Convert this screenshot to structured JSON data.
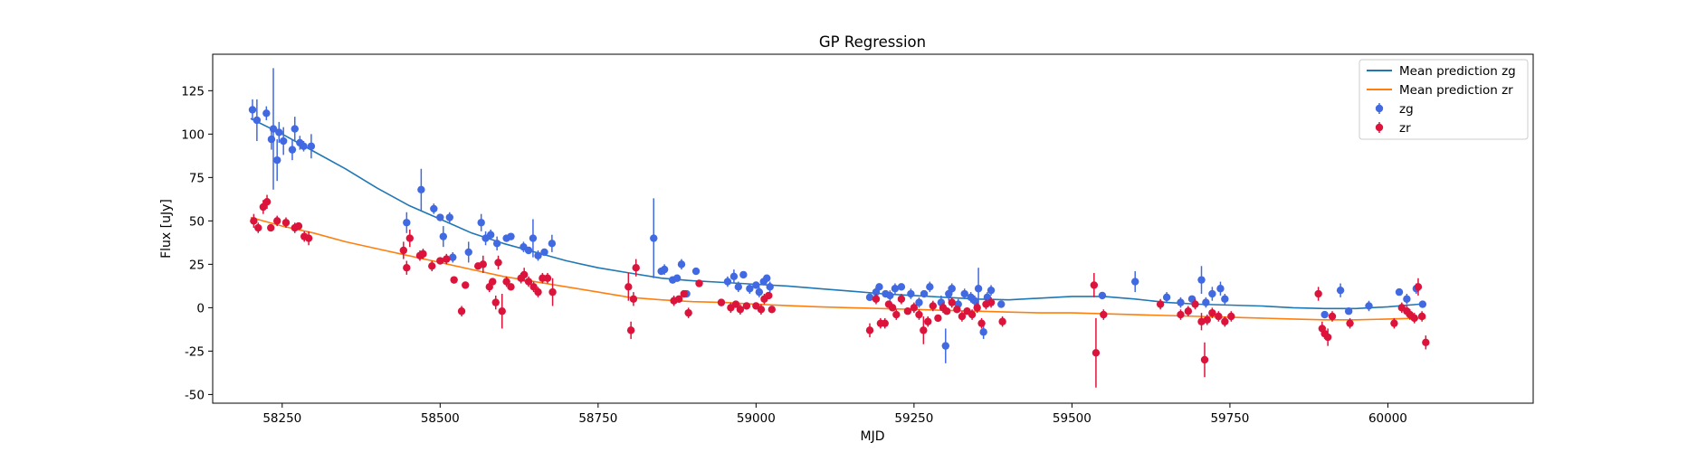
{
  "chart_data": {
    "type": "scatter",
    "title": "GP Regression",
    "xlabel": "MJD",
    "ylabel": "Flux [uJy]",
    "xlim": [
      58140,
      60230
    ],
    "ylim": [
      -55,
      146
    ],
    "xticks": [
      58250,
      58500,
      58750,
      59000,
      59250,
      59500,
      59750,
      60000
    ],
    "yticks": [
      -50,
      -25,
      0,
      25,
      50,
      75,
      100,
      125
    ],
    "legend": {
      "placement": "top-right"
    },
    "series": [
      {
        "name": "Mean prediction zg",
        "kind": "line",
        "color": "#1f77b4",
        "x": [
          58200,
          58250,
          58300,
          58350,
          58400,
          58450,
          58500,
          58550,
          58600,
          58650,
          58700,
          58750,
          58800,
          58850,
          58900,
          58950,
          59000,
          59050,
          59100,
          59150,
          59200,
          59250,
          59300,
          59350,
          59400,
          59450,
          59500,
          59550,
          59600,
          59650,
          59700,
          59750,
          59800,
          59850,
          59900,
          59950,
          60000,
          60050,
          60060
        ],
        "values": [
          109,
          100,
          90,
          80,
          69,
          59,
          51,
          43,
          37,
          32,
          27,
          23,
          20,
          17,
          15.5,
          14.5,
          13.5,
          12.5,
          11,
          9.5,
          8,
          7,
          6,
          5,
          4.5,
          5.5,
          6.5,
          6.5,
          5,
          3,
          2,
          1.5,
          1,
          0,
          -0.5,
          -0.5,
          0.5,
          2,
          2
        ]
      },
      {
        "name": "Mean prediction zr",
        "kind": "line",
        "color": "#ff7f0e",
        "x": [
          58200,
          58250,
          58300,
          58350,
          58400,
          58450,
          58500,
          58550,
          58600,
          58650,
          58700,
          58750,
          58800,
          58850,
          58900,
          58950,
          59000,
          59050,
          59100,
          59150,
          59200,
          59250,
          59300,
          59350,
          59400,
          59450,
          59500,
          59550,
          59600,
          59650,
          59700,
          59750,
          59800,
          59850,
          59900,
          59950,
          60000,
          60050,
          60060
        ],
        "values": [
          52,
          47,
          43,
          38,
          34,
          30,
          26,
          22,
          18,
          15,
          12,
          9,
          6,
          4.5,
          3.5,
          3,
          2,
          1.2,
          0.5,
          0,
          -0.5,
          -1,
          -1.5,
          -2,
          -2.5,
          -3,
          -3,
          -3.5,
          -4,
          -4.5,
          -5,
          -5.5,
          -6,
          -6.5,
          -7,
          -7,
          -6.5,
          -6,
          -6
        ]
      },
      {
        "name": "zg",
        "kind": "errorbar",
        "color": "#4169e1",
        "x": [
          58203,
          58210,
          58225,
          58233,
          58236,
          58242,
          58245,
          58252,
          58266,
          58270,
          58278,
          58284,
          58296,
          58447,
          58470,
          58490,
          58500,
          58505,
          58515,
          58520,
          58545,
          58565,
          58572,
          58580,
          58590,
          58605,
          58612,
          58632,
          58640,
          58647,
          58655,
          58665,
          58677,
          58838,
          58850,
          58855,
          58868,
          58875,
          58882,
          58890,
          58905,
          58955,
          58965,
          58972,
          58980,
          58990,
          59000,
          59005,
          59012,
          59017,
          59022,
          59180,
          59190,
          59195,
          59205,
          59212,
          59220,
          59230,
          59245,
          59258,
          59266,
          59275,
          59293,
          59300,
          59305,
          59310,
          59320,
          59330,
          59340,
          59346,
          59352,
          59360,
          59366,
          59372,
          59388,
          59548,
          59600,
          59650,
          59672,
          59690,
          59705,
          59712,
          59722,
          59735,
          59742,
          59900,
          59925,
          59938,
          59970,
          60018,
          60030,
          60045,
          60055
        ],
        "values": [
          114,
          108,
          112,
          97,
          103,
          85,
          101,
          96,
          91,
          103,
          95,
          93,
          93,
          49,
          68,
          57,
          52,
          41,
          52,
          29,
          32,
          49,
          40,
          42,
          37,
          40,
          41,
          35,
          33,
          40,
          30,
          32,
          37,
          40,
          21,
          22,
          16,
          17,
          25,
          8,
          21,
          15,
          18,
          12,
          19,
          11,
          13,
          9,
          15,
          17,
          12,
          6,
          9,
          12,
          8,
          7,
          11,
          12,
          8,
          3,
          8,
          12,
          3,
          -22,
          8,
          11,
          2,
          8,
          6,
          4,
          11,
          -14,
          6,
          10,
          2,
          7,
          15,
          6,
          3,
          5,
          16,
          3,
          8,
          11,
          5,
          -4,
          10,
          -2,
          1,
          9,
          5,
          11,
          2
        ],
        "errors": [
          6,
          12,
          4,
          6,
          35,
          12,
          6,
          8,
          6,
          7,
          4,
          3,
          7,
          6,
          12,
          3,
          2,
          6,
          3,
          3,
          6,
          5,
          4,
          3,
          4,
          2,
          2,
          3,
          2,
          11,
          3,
          2,
          5,
          23,
          2,
          3,
          2,
          2,
          3,
          2,
          2,
          3,
          4,
          3,
          2,
          3,
          2,
          3,
          2,
          2,
          3,
          2,
          3,
          2,
          2,
          3,
          3,
          2,
          3,
          3,
          2,
          3,
          4,
          10,
          4,
          3,
          3,
          3,
          3,
          3,
          12,
          4,
          3,
          3,
          2,
          2,
          6,
          3,
          3,
          2,
          8,
          3,
          4,
          4,
          3,
          2,
          4,
          2,
          3,
          2,
          3,
          3,
          2
        ]
      },
      {
        "name": "zr",
        "kind": "errorbar",
        "color": "#dc143c",
        "x": [
          58205,
          58212,
          58220,
          58226,
          58232,
          58242,
          58256,
          58270,
          58276,
          58285,
          58292,
          58442,
          58447,
          58452,
          58468,
          58473,
          58487,
          58500,
          58510,
          58522,
          58534,
          58540,
          58560,
          58568,
          58578,
          58583,
          58588,
          58592,
          58598,
          58605,
          58612,
          58628,
          58633,
          58640,
          58648,
          58655,
          58662,
          58670,
          58678,
          58798,
          58802,
          58806,
          58810,
          58870,
          58878,
          58886,
          58893,
          58910,
          58945,
          58960,
          58968,
          58975,
          58985,
          59000,
          59008,
          59013,
          59020,
          59025,
          59180,
          59190,
          59197,
          59204,
          59210,
          59216,
          59222,
          59230,
          59240,
          59250,
          59258,
          59265,
          59272,
          59280,
          59288,
          59296,
          59302,
          59310,
          59318,
          59326,
          59334,
          59342,
          59350,
          59357,
          59364,
          59372,
          59390,
          59535,
          59538,
          59550,
          59640,
          59672,
          59684,
          59695,
          59705,
          59710,
          59714,
          59722,
          59732,
          59742,
          59752,
          59890,
          59896,
          59900,
          59905,
          59912,
          59940,
          60010,
          60022,
          60030,
          60035,
          60042,
          60048,
          60054,
          60060
        ],
        "values": [
          50,
          46,
          58,
          61,
          46,
          50,
          49,
          46,
          47,
          41,
          40,
          33,
          23,
          40,
          30,
          31,
          24,
          27,
          28,
          16,
          -2,
          13,
          24,
          25,
          12,
          15,
          3,
          26,
          -2,
          15,
          12,
          17,
          19,
          15,
          12,
          9,
          17,
          17,
          9,
          12,
          -13,
          5,
          23,
          4,
          5,
          8,
          -3,
          14,
          3,
          0,
          2,
          -1,
          1,
          1,
          -1,
          5,
          7,
          -1,
          -13,
          5,
          -9,
          -9,
          2,
          0,
          -4,
          5,
          -2,
          0,
          -4,
          -13,
          -8,
          1,
          -6,
          0,
          -2,
          3,
          -1,
          -5,
          -2,
          -4,
          0,
          -9,
          2,
          3,
          -8,
          13,
          -26,
          -4,
          2,
          -4,
          -2,
          2,
          -8,
          -30,
          -7,
          -3,
          -5,
          -8,
          -5,
          8,
          -12,
          -15,
          -17,
          -5,
          -9,
          -9,
          0,
          -2,
          -4,
          -6,
          12,
          -5,
          -20
        ],
        "errors": [
          4,
          3,
          4,
          4,
          2,
          3,
          3,
          3,
          2,
          3,
          4,
          5,
          4,
          5,
          3,
          3,
          3,
          2,
          3,
          2,
          3,
          2,
          2,
          5,
          3,
          2,
          4,
          4,
          10,
          3,
          2,
          3,
          4,
          3,
          3,
          3,
          3,
          3,
          8,
          8,
          5,
          4,
          5,
          3,
          2,
          2,
          3,
          2,
          2,
          3,
          2,
          3,
          2,
          2,
          3,
          3,
          2,
          2,
          4,
          3,
          3,
          3,
          2,
          2,
          3,
          3,
          2,
          3,
          3,
          8,
          3,
          3,
          2,
          3,
          2,
          3,
          2,
          3,
          2,
          3,
          3,
          3,
          3,
          3,
          3,
          7,
          20,
          3,
          3,
          3,
          3,
          3,
          5,
          10,
          3,
          3,
          3,
          3,
          3,
          4,
          4,
          3,
          5,
          3,
          3,
          3,
          3,
          3,
          3,
          3,
          5,
          3,
          4
        ]
      }
    ]
  }
}
